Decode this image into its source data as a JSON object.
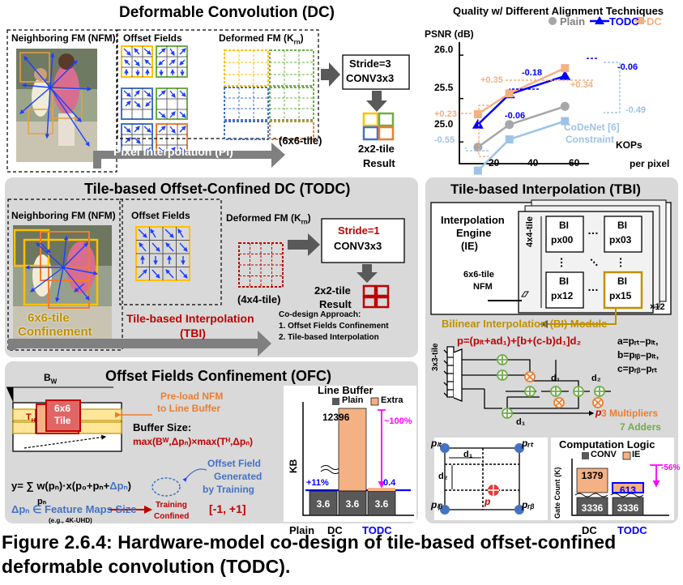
{
  "dc": {
    "title": "Deformable Convolution (DC)",
    "nfm_label": "Neighboring FM (NFM)",
    "offset_label": "Offset Fields",
    "deformed_label": "Deformed FM (K",
    "deformed_sub": "rn",
    "conv_line1": "Stride=3",
    "conv_line2": "CONV3x3",
    "tile_label": "(6x6-tile)",
    "pi_label": "Pixel Interpolation (PI)",
    "result_line1": "2x2-tile",
    "result_line2": "Result"
  },
  "chart_title": "Quality w/ Different Alignment Techniques",
  "chart_data": {
    "type": "line",
    "title": "Quality w/ Different Alignment Techniques",
    "ylabel": "PSNR (dB)",
    "xlabel": "KOPs per pixel",
    "ylim": [
      24.75,
      26.15
    ],
    "xlim": [
      10,
      80
    ],
    "yticks": [
      "25.0",
      "25.5",
      "26.0"
    ],
    "xticks": [
      "20",
      "40",
      "60"
    ],
    "legend": [
      "Plain",
      "TODC",
      "DC"
    ],
    "series": [
      {
        "name": "Plain",
        "color": "#a6a6a6",
        "marker": "circle",
        "x": [
          20,
          37,
          67
        ],
        "y": [
          24.94,
          25.2,
          25.41
        ]
      },
      {
        "name": "TODC",
        "color": "#0000ff",
        "marker": "triangle",
        "x": [
          20,
          37,
          67
        ],
        "y": [
          25.2,
          25.55,
          25.76
        ]
      },
      {
        "name": "DC",
        "color": "#f4b183",
        "marker": "square",
        "x": [
          20,
          37,
          67
        ],
        "y": [
          25.32,
          25.56,
          25.85
        ]
      },
      {
        "name": "CoDeNet [6]",
        "color": "#9dc3e6",
        "marker": "square",
        "x": [
          20,
          37,
          67
        ],
        "y": [
          24.67,
          25.03,
          25.24
        ]
      }
    ],
    "annotations": [
      "+0.35",
      "-0.18",
      "+0.34",
      "-0.06",
      "-0.06",
      "+0.23",
      "-0.55",
      "-0.49",
      "CoDeNet [6]",
      "Constraint"
    ]
  },
  "todc": {
    "title": "Tile-based Offset-Confined DC (TODC)",
    "nfm_label": "Neighboring FM (NFM)",
    "offset_label": "Offset Fields",
    "deformed_label": "Deformed FM (K",
    "deformed_sub": "rn",
    "conv_line1": "Stride=1",
    "conv_line2": "CONV3x3",
    "tile_label": "(4x4-tile)",
    "result_line1": "2x2-tile",
    "result_line2": "Result",
    "confine_line1": "6x6-tile",
    "confine_line2": "Confinement",
    "tbi_line1": "Tile-based Interpolation",
    "tbi_line2": "(TBI)",
    "codesign_title": "Co-design Approach:",
    "codesign_1": "1. Offset Fields Confinement",
    "codesign_2": "2. Tile-based Interpolation"
  },
  "tbi": {
    "title": "Tile-based Interpolation (TBI)",
    "ie_line1": "Interpolation",
    "ie_line2": "Engine",
    "ie_line3": "(IE)",
    "tile44": "4x4-tile",
    "nfm_line1": "6x6-tile",
    "nfm_line2": "NFM",
    "bi": "BI",
    "px00": "px00",
    "px03": "px03",
    "px12": "px12",
    "px15": "px15",
    "dots": "…",
    "times12": "×12",
    "module_title": "Bilinear Interpolation (BI) Module",
    "formula": "p=(pₗₜ+ad₁)+[b+(c-b)d₁]d₂",
    "eq_a": "a=pᵣₜ–pₗₜ,",
    "eq_b": "b=pₗᵦ–pₗₜ,",
    "eq_c": "c=pᵣᵦ–pᵣₜ",
    "tile33": "3x3-tile",
    "d1": "d₁",
    "d2": "d₂",
    "mults": "3 Multipliers",
    "adders": "7 Adders",
    "p_out": "p",
    "p_lt": "pₗₜ",
    "p_rt": "pᵣₜ",
    "p_lb": "pₗᵦ",
    "p_rb": "pᵣᵦ",
    "p_mid": "p"
  },
  "ofc": {
    "title": "Offset Fields Confinement (OFC)",
    "bw": "B",
    "bw_sub": "W",
    "th": "T",
    "th_sub": "H",
    "tile_line1": "6x6",
    "tile_line2": "Tile",
    "preload_line1": "Pre-load NFM",
    "preload_line2": "to Line Buffer",
    "bufsize": "Buffer Size:",
    "bufformula": "max(Bᵂ,Δpₙ)×max(Tᴴ,Δpₙ)",
    "eq_main": "y= ∑ w(pₙ)·x(p₀+pₙ+",
    "eq_dp": "Δpₙ",
    "eq_close": ")",
    "eq_under": "pₙ",
    "gen_line1": "Offset Field",
    "gen_line2": "Generated",
    "gen_line3": "by Training",
    "fm_eq": "Δpₙ ∈ Feature Maps Size",
    "fm_eg": "(e.g., 4K-UHD)",
    "training": "Training",
    "confined": "Confined",
    "range": "[-1, +1]"
  },
  "linebuffer": {
    "title": "Line Buffer",
    "legend_plain": "Plain",
    "legend_extra": "Extra",
    "ylabel": "KB",
    "categories": [
      "Plain",
      "DC",
      "TODC"
    ],
    "base": [
      "3.6",
      "3.6",
      "3.6"
    ],
    "extra_dc": "12396",
    "extra_todc": "0.4",
    "pct_up": "+11%",
    "pct_down": "~100%"
  },
  "complogic": {
    "title": "Computation Logic",
    "legend_conv": "CONV",
    "legend_ie": "IE",
    "ylabel": "Gate Count (K)",
    "categories": [
      "DC",
      "TODC"
    ],
    "conv": [
      "3336",
      "3336"
    ],
    "ie": [
      "1379",
      "613"
    ],
    "pct": "-56%"
  },
  "caption": "Figure 2.6.4: Hardware-model co-design of tile-based offset-confined deformable convolution (TODC).",
  "colors": {
    "blue": "#0000ff",
    "orange": "#ed7d31",
    "red": "#c00000",
    "green": "#70ad47",
    "gold": "#bf9000",
    "panel": "#d9d9d9"
  }
}
